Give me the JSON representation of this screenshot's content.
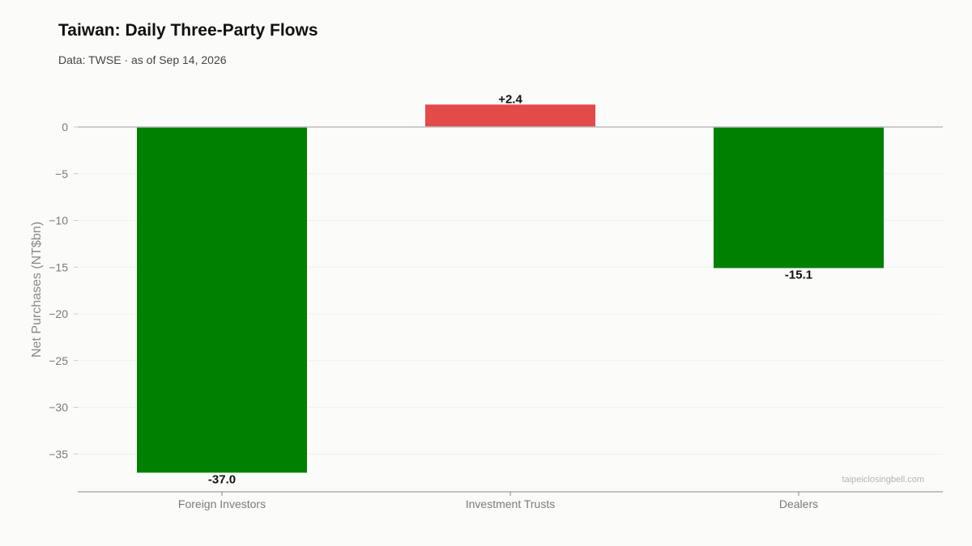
{
  "title": "Taiwan: Daily Three-Party Flows",
  "subtitle": "Data: TWSE · as of Sep 14, 2026",
  "watermark": "taipeiclosingbell.com",
  "colors": {
    "negative": "#008000",
    "positive": "#e34a4a",
    "zero_line": "#bdbdbd",
    "axis": "#8a8a8a",
    "grid": "#f0f0ee"
  },
  "chart_data": {
    "type": "bar",
    "categories": [
      "Foreign Investors",
      "Investment Trusts",
      "Dealers"
    ],
    "values": [
      -37.0,
      2.4,
      -15.1
    ],
    "value_labels": [
      "-37.0",
      "+2.4",
      "-15.1"
    ],
    "ylabel": "Net Purchases (NT$bn)",
    "ylim": [
      -39,
      3.2
    ],
    "yticks": [
      0,
      -5,
      -10,
      -15,
      -20,
      -25,
      -30,
      -35
    ],
    "ytick_labels": [
      "0",
      "−5",
      "−10",
      "−15",
      "−20",
      "−25",
      "−30",
      "−35"
    ],
    "grid": true,
    "legend": "none"
  }
}
